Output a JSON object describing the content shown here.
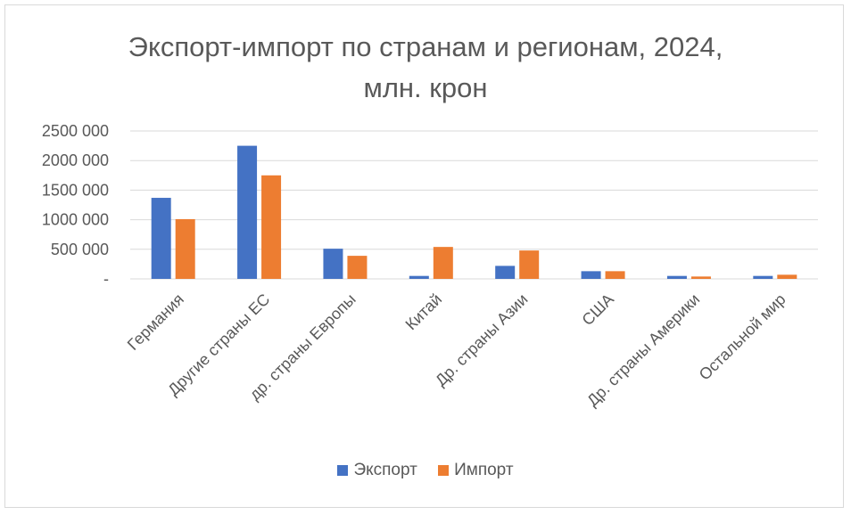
{
  "chart_data": {
    "type": "bar",
    "title": [
      "Экспорт-импорт по странам и регионам, 2024,",
      "млн. крон"
    ],
    "categories": [
      "Германия",
      "Другие страны ЕС",
      "др. страны Европы",
      "Китай",
      "Др. страны Азии",
      "США",
      "Др. страны Америки",
      "Остальной мир"
    ],
    "series": [
      {
        "name": "Экспорт",
        "color": "#4472c4",
        "values": [
          1370000,
          2250000,
          510000,
          50000,
          220000,
          130000,
          50000,
          50000
        ]
      },
      {
        "name": "Импорт",
        "color": "#ed7d31",
        "values": [
          1010000,
          1750000,
          390000,
          540000,
          480000,
          130000,
          40000,
          70000
        ]
      }
    ],
    "ylim": [
      0,
      2500000
    ],
    "yticks": [
      {
        "value": 0,
        "label": "-"
      },
      {
        "value": 500000,
        "label": "500 000"
      },
      {
        "value": 1000000,
        "label": "1000 000"
      },
      {
        "value": 1500000,
        "label": "1500 000"
      },
      {
        "value": 2000000,
        "label": "2000 000"
      },
      {
        "value": 2500000,
        "label": "2500 000"
      }
    ],
    "grid": true,
    "legend": "bottom",
    "xlabel": "",
    "ylabel": ""
  }
}
